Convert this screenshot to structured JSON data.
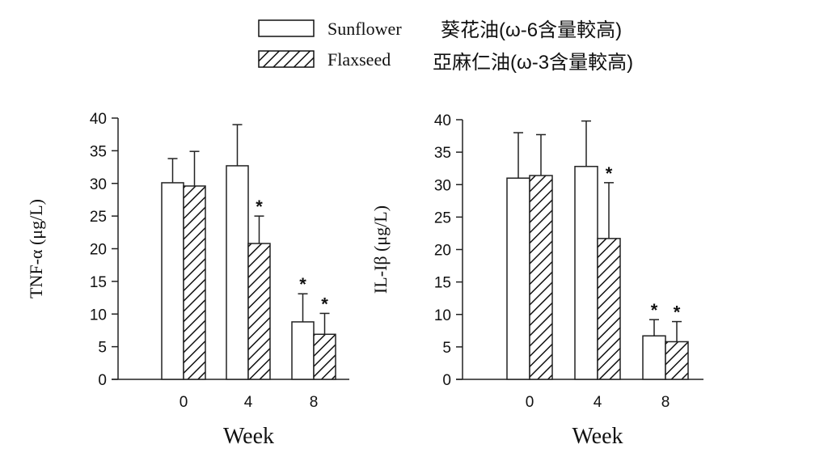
{
  "legend": [
    {
      "name": "Sunflower",
      "note": "葵花油(ω-6含量較高)",
      "pattern": "open"
    },
    {
      "name": "Flaxseed",
      "note": "亞麻仁油(ω-3含量較高)",
      "pattern": "hatched"
    }
  ],
  "chart_data": [
    {
      "type": "bar",
      "title": "",
      "xlabel": "Week",
      "ylabel": "TNF-α (μg/L)",
      "categories": [
        "0",
        "4",
        "8"
      ],
      "ylim": [
        0,
        40
      ],
      "yticks": [
        0,
        5,
        10,
        15,
        20,
        25,
        30,
        35,
        40
      ],
      "series": [
        {
          "name": "Sunflower",
          "values": [
            30.1,
            32.7,
            8.8
          ],
          "error_upper": [
            33.8,
            39.0,
            13.1
          ],
          "significant": [
            false,
            false,
            true
          ]
        },
        {
          "name": "Flaxseed",
          "values": [
            29.6,
            20.8,
            6.9
          ],
          "error_upper": [
            34.9,
            25.0,
            10.1
          ],
          "significant": [
            false,
            true,
            true
          ]
        }
      ],
      "annotation": "*"
    },
    {
      "type": "bar",
      "title": "",
      "xlabel": "Week",
      "ylabel": "IL-Iβ (μg/L)",
      "categories": [
        "0",
        "4",
        "8"
      ],
      "ylim": [
        0,
        40
      ],
      "yticks": [
        0,
        5,
        10,
        15,
        20,
        25,
        30,
        35,
        40
      ],
      "series": [
        {
          "name": "Sunflower",
          "values": [
            31.0,
            32.8,
            6.7
          ],
          "error_upper": [
            38.0,
            39.8,
            9.2
          ],
          "significant": [
            false,
            false,
            true
          ]
        },
        {
          "name": "Flaxseed",
          "values": [
            31.4,
            21.7,
            5.8
          ],
          "error_upper": [
            37.7,
            30.3,
            8.9
          ],
          "significant": [
            false,
            true,
            true
          ]
        }
      ],
      "annotation": "*"
    }
  ]
}
